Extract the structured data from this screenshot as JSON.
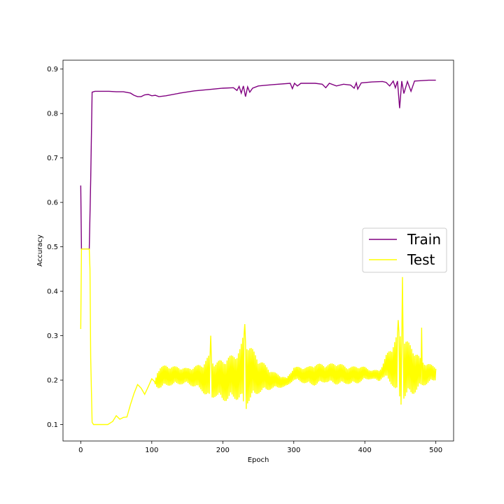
{
  "chart_data": {
    "type": "line",
    "title": "",
    "xlabel": "Epoch",
    "ylabel": "Accuracy",
    "xlim": [
      -25,
      525
    ],
    "ylim": [
      0.063,
      0.92
    ],
    "xticks": [
      0,
      100,
      200,
      300,
      400,
      500
    ],
    "xtick_labels": [
      "0",
      "100",
      "200",
      "300",
      "400",
      "500"
    ],
    "yticks": [
      0.1,
      0.2,
      0.3,
      0.4,
      0.5,
      0.6,
      0.7,
      0.8,
      0.9
    ],
    "ytick_labels": [
      "0.1",
      "0.2",
      "0.3",
      "0.4",
      "0.5",
      "0.6",
      "0.7",
      "0.8",
      "0.9"
    ],
    "grid": false,
    "legend_position": "center-right",
    "series": [
      {
        "name": "Train",
        "color": "#800080",
        "points": [
          [
            0,
            0.638
          ],
          [
            1,
            0.495
          ],
          [
            5,
            0.495
          ],
          [
            10,
            0.495
          ],
          [
            12,
            0.495
          ],
          [
            14,
            0.65
          ],
          [
            16,
            0.848
          ],
          [
            20,
            0.85
          ],
          [
            40,
            0.85
          ],
          [
            50,
            0.849
          ],
          [
            60,
            0.849
          ],
          [
            70,
            0.846
          ],
          [
            75,
            0.841
          ],
          [
            80,
            0.838
          ],
          [
            85,
            0.838
          ],
          [
            90,
            0.842
          ],
          [
            95,
            0.843
          ],
          [
            100,
            0.84
          ],
          [
            105,
            0.841
          ],
          [
            110,
            0.838
          ],
          [
            120,
            0.84
          ],
          [
            140,
            0.846
          ],
          [
            160,
            0.851
          ],
          [
            180,
            0.854
          ],
          [
            200,
            0.857
          ],
          [
            215,
            0.858
          ],
          [
            220,
            0.852
          ],
          [
            223,
            0.861
          ],
          [
            226,
            0.846
          ],
          [
            229,
            0.862
          ],
          [
            232,
            0.838
          ],
          [
            235,
            0.86
          ],
          [
            238,
            0.848
          ],
          [
            242,
            0.857
          ],
          [
            250,
            0.862
          ],
          [
            270,
            0.865
          ],
          [
            295,
            0.868
          ],
          [
            298,
            0.856
          ],
          [
            301,
            0.868
          ],
          [
            305,
            0.862
          ],
          [
            310,
            0.868
          ],
          [
            330,
            0.868
          ],
          [
            340,
            0.866
          ],
          [
            345,
            0.858
          ],
          [
            350,
            0.868
          ],
          [
            360,
            0.862
          ],
          [
            370,
            0.866
          ],
          [
            380,
            0.864
          ],
          [
            385,
            0.857
          ],
          [
            388,
            0.869
          ],
          [
            390,
            0.855
          ],
          [
            395,
            0.869
          ],
          [
            410,
            0.871
          ],
          [
            425,
            0.872
          ],
          [
            430,
            0.87
          ],
          [
            435,
            0.862
          ],
          [
            440,
            0.873
          ],
          [
            443,
            0.858
          ],
          [
            446,
            0.873
          ],
          [
            449,
            0.812
          ],
          [
            452,
            0.873
          ],
          [
            455,
            0.845
          ],
          [
            460,
            0.872
          ],
          [
            465,
            0.85
          ],
          [
            470,
            0.873
          ],
          [
            480,
            0.874
          ],
          [
            490,
            0.875
          ],
          [
            500,
            0.875
          ]
        ]
      },
      {
        "name": "Test",
        "color": "#ffff00",
        "points": [
          [
            0,
            0.315
          ],
          [
            1,
            0.495
          ],
          [
            5,
            0.495
          ],
          [
            10,
            0.495
          ],
          [
            12,
            0.495
          ],
          [
            13,
            0.45
          ],
          [
            14,
            0.25
          ],
          [
            16,
            0.105
          ],
          [
            18,
            0.1
          ],
          [
            30,
            0.1
          ],
          [
            38,
            0.1
          ],
          [
            45,
            0.107
          ],
          [
            50,
            0.12
          ],
          [
            55,
            0.112
          ],
          [
            60,
            0.116
          ],
          [
            65,
            0.117
          ],
          [
            70,
            0.145
          ],
          [
            75,
            0.17
          ],
          [
            80,
            0.19
          ],
          [
            85,
            0.182
          ],
          [
            90,
            0.168
          ],
          [
            95,
            0.185
          ],
          [
            100,
            0.203
          ],
          [
            105,
            0.195
          ],
          [
            110,
            0.205
          ],
          [
            120,
            0.21
          ],
          [
            140,
            0.21
          ],
          [
            160,
            0.208
          ],
          [
            180,
            0.205
          ],
          [
            200,
            0.2
          ],
          [
            220,
            0.21
          ],
          [
            230,
            0.22
          ],
          [
            250,
            0.21
          ],
          [
            270,
            0.2
          ],
          [
            290,
            0.195
          ],
          [
            300,
            0.215
          ],
          [
            320,
            0.21
          ],
          [
            340,
            0.215
          ],
          [
            360,
            0.215
          ],
          [
            380,
            0.21
          ],
          [
            400,
            0.215
          ],
          [
            420,
            0.21
          ],
          [
            430,
            0.23
          ],
          [
            440,
            0.235
          ],
          [
            450,
            0.23
          ],
          [
            460,
            0.225
          ],
          [
            470,
            0.22
          ],
          [
            480,
            0.215
          ],
          [
            490,
            0.215
          ],
          [
            500,
            0.215
          ]
        ],
        "oscillation": {
          "note": "rapid epoch-to-epoch fluctuation around the trend",
          "envelope": [
            [
              0,
              0
            ],
            [
              104,
              0
            ],
            [
              108,
              0.02
            ],
            [
              112,
              0.025
            ],
            [
              150,
              0.018
            ],
            [
              170,
              0.03
            ],
            [
              180,
              0.05
            ],
            [
              190,
              0.04
            ],
            [
              205,
              0.05
            ],
            [
              215,
              0.05
            ],
            [
              225,
              0.06
            ],
            [
              230,
              0.09
            ],
            [
              235,
              0.07
            ],
            [
              250,
              0.04
            ],
            [
              270,
              0.02
            ],
            [
              290,
              0.01
            ],
            [
              300,
              0.015
            ],
            [
              320,
              0.02
            ],
            [
              330,
              0.025
            ],
            [
              345,
              0.02
            ],
            [
              360,
              0.025
            ],
            [
              375,
              0.02
            ],
            [
              390,
              0.02
            ],
            [
              410,
              0.01
            ],
            [
              425,
              0.015
            ],
            [
              440,
              0.05
            ],
            [
              448,
              0.08
            ],
            [
              455,
              0.07
            ],
            [
              470,
              0.05
            ],
            [
              480,
              0.03
            ],
            [
              500,
              0.015
            ]
          ],
          "spikes": [
            [
              453,
              0.432
            ],
            [
              451,
              0.145
            ],
            [
              231,
              0.326
            ],
            [
              233,
              0.135
            ],
            [
              183,
              0.3
            ],
            [
              480,
              0.318
            ],
            [
              447,
              0.335
            ]
          ]
        }
      }
    ]
  }
}
